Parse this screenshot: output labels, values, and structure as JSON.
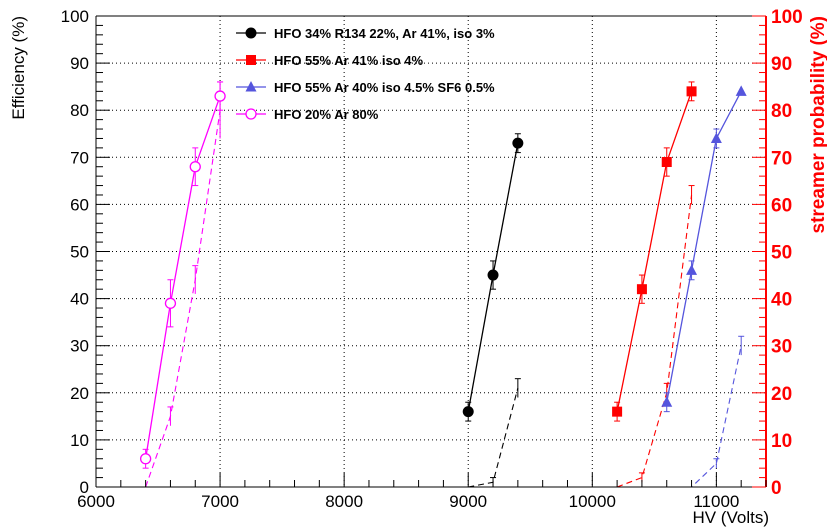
{
  "chart_data": {
    "type": "line",
    "xlabel": "HV (Volts)",
    "ylabel": "Efficiency (%)",
    "y2label": "streamer probability (%)",
    "xlim": [
      6000,
      11400
    ],
    "ylim": [
      0,
      100
    ],
    "y2lim": [
      0,
      100
    ],
    "x_ticks": [
      6000,
      7000,
      8000,
      9000,
      10000,
      11000
    ],
    "y_ticks": [
      0,
      10,
      20,
      30,
      40,
      50,
      60,
      70,
      80,
      90,
      100
    ],
    "grid": true,
    "legend_position": "top-left",
    "colors": {
      "axis": "#000000",
      "right_axis": "#ff0000",
      "grid": "#000000"
    },
    "series": [
      {
        "name": "HFO 34% R134 22%, Ar 41%, iso 3%",
        "color": "#000000",
        "marker": "circle-filled",
        "efficiency": {
          "x": [
            9000,
            9200,
            9400
          ],
          "y": [
            16,
            45,
            73
          ],
          "yerr": [
            2,
            3,
            2
          ]
        },
        "streamer": {
          "x": [
            9000,
            9200,
            9400
          ],
          "y": [
            0,
            1,
            21
          ],
          "yerr": [
            0,
            1,
            2
          ]
        }
      },
      {
        "name": "HFO 55% Ar 41% iso 4%",
        "color": "#ff0000",
        "marker": "square-filled",
        "efficiency": {
          "x": [
            10200,
            10400,
            10600,
            10800
          ],
          "y": [
            16,
            42,
            69,
            84
          ],
          "yerr": [
            2,
            3,
            3,
            2
          ]
        },
        "streamer": {
          "x": [
            10200,
            10400,
            10600,
            10800
          ],
          "y": [
            0,
            2,
            20,
            62
          ],
          "yerr": [
            0,
            1,
            2,
            2
          ]
        }
      },
      {
        "name": "HFO 55% Ar 40% iso 4.5% SF6 0.5%",
        "color": "#5555dd",
        "marker": "triangle-filled",
        "efficiency": {
          "x": [
            10600,
            10800,
            11000,
            11200
          ],
          "y": [
            18,
            46,
            74,
            84
          ],
          "yerr": [
            2,
            2,
            2,
            0
          ]
        },
        "streamer": {
          "x": [
            10600,
            10800,
            11000,
            11200
          ],
          "y": [
            0,
            0,
            5,
            30
          ],
          "yerr": [
            0,
            0,
            1,
            2
          ]
        }
      },
      {
        "name": "HFO 20% Ar 80%",
        "color": "#ff00ff",
        "marker": "circle-open",
        "efficiency": {
          "x": [
            6400,
            6600,
            6800,
            7000
          ],
          "y": [
            6,
            39,
            68,
            83
          ],
          "yerr": [
            2,
            5,
            4,
            3
          ]
        },
        "streamer": {
          "x": [
            6400,
            6600,
            6800,
            7000
          ],
          "y": [
            0,
            15,
            44,
            80
          ],
          "yerr": [
            0,
            2,
            3,
            6
          ]
        }
      }
    ]
  }
}
